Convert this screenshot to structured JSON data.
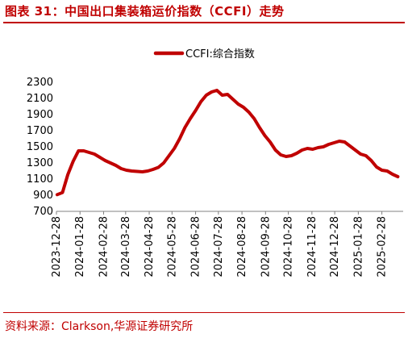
{
  "header": {
    "title": "图表 31：中国出口集装箱运价指数（CCFI）走势"
  },
  "footer": {
    "source": "资料来源：Clarkson,华源证券研究所"
  },
  "colors": {
    "accent": "#c00000",
    "series": "#c00000"
  },
  "chart_data": {
    "type": "line",
    "title": "",
    "xlabel": "",
    "ylabel": "",
    "legend": {
      "placement": "top-center",
      "entries": [
        "CCFI:综合指数"
      ]
    },
    "grid": false,
    "ylim": [
      700,
      2300
    ],
    "yticks": [
      700,
      900,
      1100,
      1300,
      1500,
      1700,
      1900,
      2100,
      2300
    ],
    "xticks": [
      "2023-12-28",
      "2024-01-28",
      "2024-02-28",
      "2024-03-28",
      "2024-04-28",
      "2024-05-28",
      "2024-06-28",
      "2024-07-28",
      "2024-08-28",
      "2024-09-28",
      "2024-10-28",
      "2024-11-28",
      "2024-12-28",
      "2025-01-28",
      "2025-02-28"
    ],
    "xlim": [
      "2023-12-28",
      "2025-03-28"
    ],
    "series": [
      {
        "name": "CCFI:综合指数",
        "color": "#c00000",
        "points": [
          [
            "2023-12-29",
            907
          ],
          [
            "2024-01-05",
            933
          ],
          [
            "2024-01-12",
            1155
          ],
          [
            "2024-01-19",
            1320
          ],
          [
            "2024-01-26",
            1450
          ],
          [
            "2024-02-02",
            1450
          ],
          [
            "2024-02-09",
            1430
          ],
          [
            "2024-02-16",
            1410
          ],
          [
            "2024-02-23",
            1370
          ],
          [
            "2024-03-01",
            1330
          ],
          [
            "2024-03-08",
            1300
          ],
          [
            "2024-03-15",
            1270
          ],
          [
            "2024-03-22",
            1230
          ],
          [
            "2024-03-29",
            1210
          ],
          [
            "2024-04-05",
            1200
          ],
          [
            "2024-04-12",
            1195
          ],
          [
            "2024-04-19",
            1190
          ],
          [
            "2024-04-26",
            1200
          ],
          [
            "2024-05-03",
            1220
          ],
          [
            "2024-05-10",
            1245
          ],
          [
            "2024-05-17",
            1300
          ],
          [
            "2024-05-24",
            1390
          ],
          [
            "2024-05-31",
            1480
          ],
          [
            "2024-06-07",
            1600
          ],
          [
            "2024-06-14",
            1740
          ],
          [
            "2024-06-21",
            1850
          ],
          [
            "2024-06-28",
            1950
          ],
          [
            "2024-07-05",
            2060
          ],
          [
            "2024-07-12",
            2140
          ],
          [
            "2024-07-19",
            2180
          ],
          [
            "2024-07-26",
            2200
          ],
          [
            "2024-08-02",
            2140
          ],
          [
            "2024-08-09",
            2150
          ],
          [
            "2024-08-16",
            2090
          ],
          [
            "2024-08-23",
            2030
          ],
          [
            "2024-08-30",
            1990
          ],
          [
            "2024-09-06",
            1930
          ],
          [
            "2024-09-13",
            1850
          ],
          [
            "2024-09-20",
            1740
          ],
          [
            "2024-09-27",
            1640
          ],
          [
            "2024-10-04",
            1560
          ],
          [
            "2024-10-11",
            1460
          ],
          [
            "2024-10-18",
            1400
          ],
          [
            "2024-10-25",
            1380
          ],
          [
            "2024-11-01",
            1390
          ],
          [
            "2024-11-08",
            1420
          ],
          [
            "2024-11-15",
            1460
          ],
          [
            "2024-11-22",
            1480
          ],
          [
            "2024-11-29",
            1470
          ],
          [
            "2024-12-06",
            1490
          ],
          [
            "2024-12-13",
            1500
          ],
          [
            "2024-12-20",
            1530
          ],
          [
            "2024-12-27",
            1550
          ],
          [
            "2025-01-03",
            1570
          ],
          [
            "2025-01-10",
            1560
          ],
          [
            "2025-01-17",
            1510
          ],
          [
            "2025-01-24",
            1460
          ],
          [
            "2025-01-31",
            1410
          ],
          [
            "2025-02-07",
            1390
          ],
          [
            "2025-02-14",
            1330
          ],
          [
            "2025-02-21",
            1250
          ],
          [
            "2025-02-28",
            1210
          ],
          [
            "2025-03-07",
            1200
          ],
          [
            "2025-03-14",
            1160
          ],
          [
            "2025-03-21",
            1130
          ]
        ]
      }
    ]
  }
}
